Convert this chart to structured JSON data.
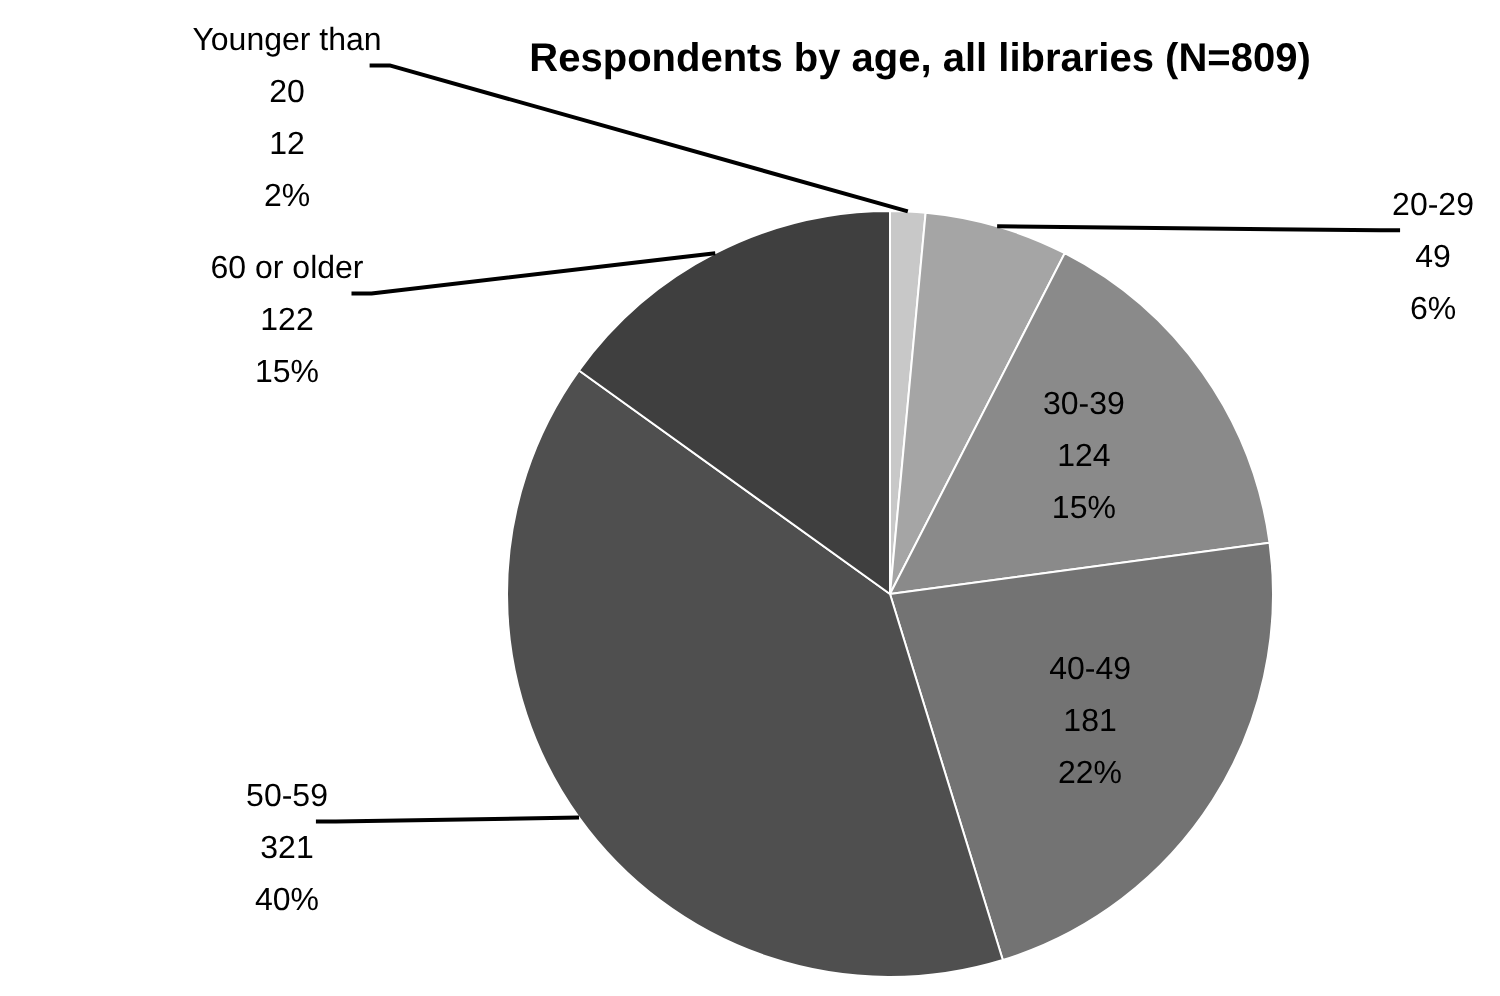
{
  "chart_data": {
    "type": "pie",
    "title": "Respondents by age, all libraries (N=809)",
    "categories": [
      "Younger than 20",
      "20-29",
      "30-39",
      "40-49",
      "50-59",
      "60 or older"
    ],
    "values": [
      12,
      49,
      124,
      181,
      321,
      122
    ],
    "value_labels": [
      "12\n2%",
      "49\n6%",
      "124\n15%",
      "181\n22%",
      "321\n40%",
      "122\n15%"
    ],
    "colors": [
      "#c8c8c8",
      "#a5a5a5",
      "#8a8a8a",
      "#737373",
      "#4f4f4f",
      "#3f3f3f"
    ],
    "legend": false
  }
}
